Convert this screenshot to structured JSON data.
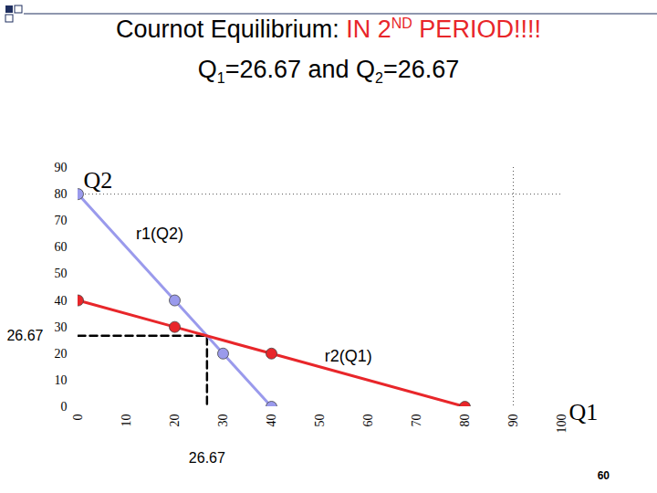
{
  "title": "Cournot Equilibrium:",
  "title_highlight": "IN 2ND PERIOD!!!!",
  "subtitle": "Q1=26.67 and Q2=26.67",
  "page_number": "60",
  "chart_data": {
    "type": "line",
    "x_label": "Q1",
    "y_label": "Q2",
    "xlim": [
      0,
      100
    ],
    "xticks": [
      0,
      10,
      20,
      30,
      40,
      50,
      60,
      70,
      80,
      90,
      100
    ],
    "ylim": [
      0,
      90
    ],
    "yticks": [
      0,
      10,
      20,
      30,
      40,
      50,
      60,
      70,
      80,
      90
    ],
    "grid": false,
    "series": [
      {
        "name": "r1(Q2)",
        "color": "#9a9aec",
        "marker": "circle",
        "x": [
          0,
          20,
          30,
          40
        ],
        "values": [
          80,
          40,
          20,
          0
        ],
        "label_x": 12,
        "label_y": 65
      },
      {
        "name": "r2(Q1)",
        "color": "#e8262a",
        "marker": "circle",
        "x": [
          0,
          20,
          40,
          80
        ],
        "values": [
          40,
          30,
          20,
          0
        ],
        "label_x": 51,
        "label_y": 19
      }
    ],
    "equilibrium": {
      "x": 26.67,
      "y": 26.67
    },
    "dotted_lines": {
      "x": [
        90
      ],
      "y": [
        80
      ]
    }
  }
}
